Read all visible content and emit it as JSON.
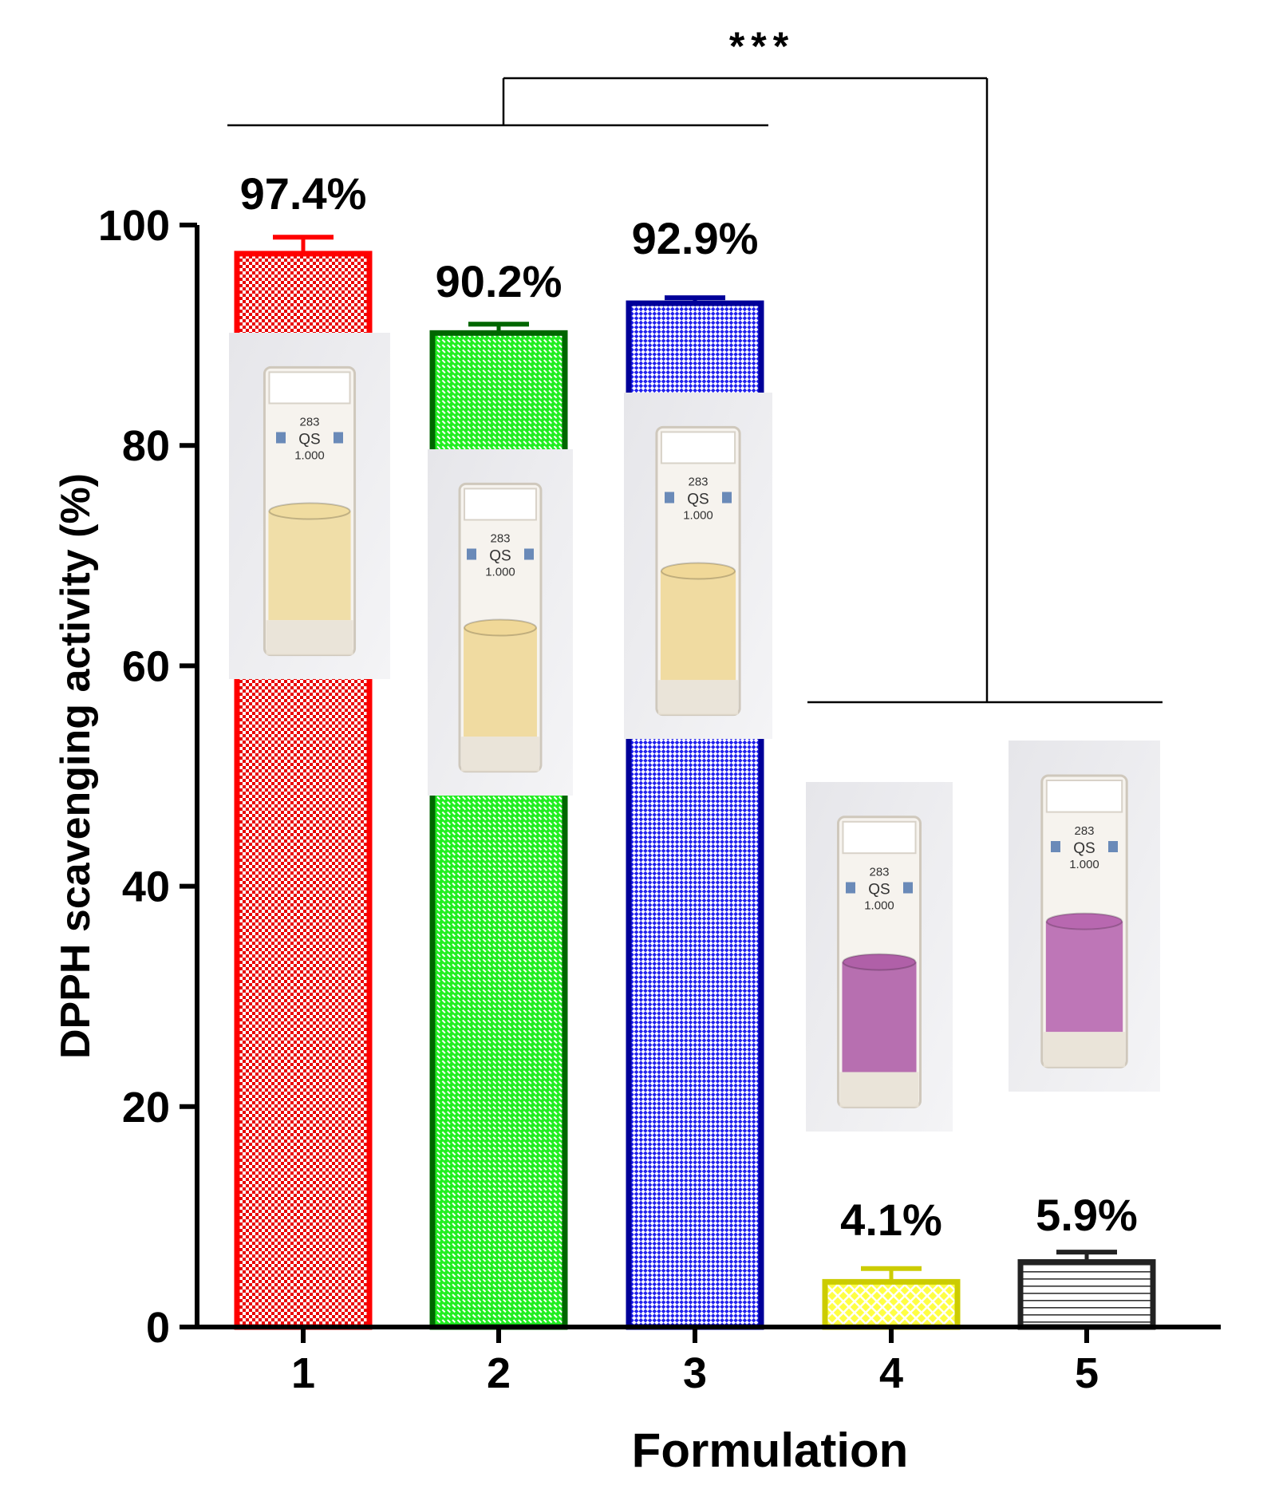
{
  "chart_data": {
    "type": "bar",
    "xlabel": "Formulation",
    "ylabel": "DPPH scavenging activity (%)",
    "ylim": [
      0,
      100
    ],
    "yticks": [
      0,
      20,
      40,
      60,
      80,
      100
    ],
    "categories": [
      "1",
      "2",
      "3",
      "4",
      "5"
    ],
    "values": [
      97.4,
      90.2,
      92.9,
      4.1,
      5.9
    ],
    "errors": [
      1.5,
      0.8,
      0.5,
      1.2,
      0.9
    ],
    "value_labels": [
      "97.4%",
      "90.2%",
      "92.9%",
      "4.1%",
      "5.9%"
    ],
    "bar_colors": [
      "#ff2a2a",
      "#1fbf1f",
      "#1a1acc",
      "#e6e600",
      "#444444"
    ],
    "bar_fill_colors": [
      "#e80000",
      "#22ee22",
      "#2020ee",
      "#ffff44",
      "#ffffff"
    ],
    "bar_edge_colors": [
      "#ff0000",
      "#006600",
      "#000099",
      "#cccc00",
      "#222222"
    ],
    "bar_patterns": [
      "checker",
      "diagonal-dash",
      "checker",
      "crosshatch",
      "horizontal-lines"
    ],
    "significance": {
      "label": "***",
      "groups": [
        [
          "1",
          "2",
          "3"
        ],
        [
          "4",
          "5"
        ]
      ]
    },
    "cuvettes": [
      {
        "number": "283",
        "mark": "QS",
        "path": "1.000",
        "solution_color": "#f0dca0"
      },
      {
        "number": "283",
        "mark": "QS",
        "path": "1.000",
        "solution_color": "#f0d898"
      },
      {
        "number": "283",
        "mark": "QS",
        "path": "1.000",
        "solution_color": "#f0d898"
      },
      {
        "number": "283",
        "mark": "QS",
        "path": "1.000",
        "solution_color": "#b060a8"
      },
      {
        "number": "283",
        "mark": "QS",
        "path": "1.000",
        "solution_color": "#b868b0"
      }
    ]
  }
}
